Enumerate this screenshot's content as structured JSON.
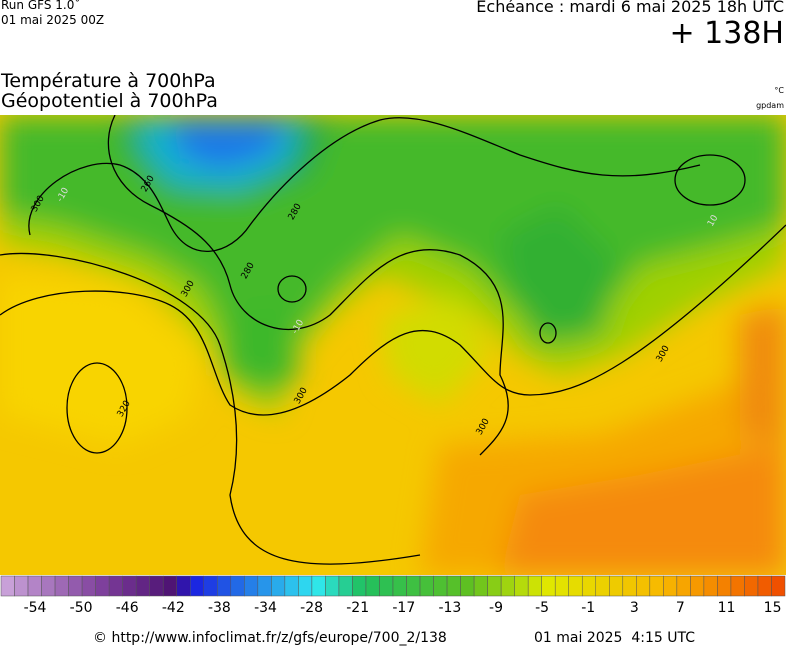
{
  "header": {
    "run": "Run GFS 1.0˚",
    "run_date": "01 mai 2025 00Z",
    "forecast": "Echéance : mardi 6 mai 2025 18h UTC",
    "lead": "+ 138H",
    "title_1": "Température à 700hPa",
    "title_2": "Géopotentiel à 700hPa",
    "unit_temp": "°C",
    "unit_geo": "gpdam"
  },
  "map": {
    "contour_labels": [
      "300",
      "260",
      "280",
      "280",
      "300",
      "320",
      "300",
      "300",
      "300",
      "-10",
      "10",
      "-10"
    ]
  },
  "legend": {
    "labels": [
      -54,
      -50,
      -46,
      -42,
      -38,
      -34,
      -28,
      -21,
      -17,
      -13,
      -9,
      -5,
      -1,
      3,
      7,
      11,
      15
    ]
  },
  "footer": {
    "source": "© http://www.infoclimat.fr/z/gfs/europe/700_2/138",
    "date": "01 mai 2025  4:15 UTC"
  }
}
